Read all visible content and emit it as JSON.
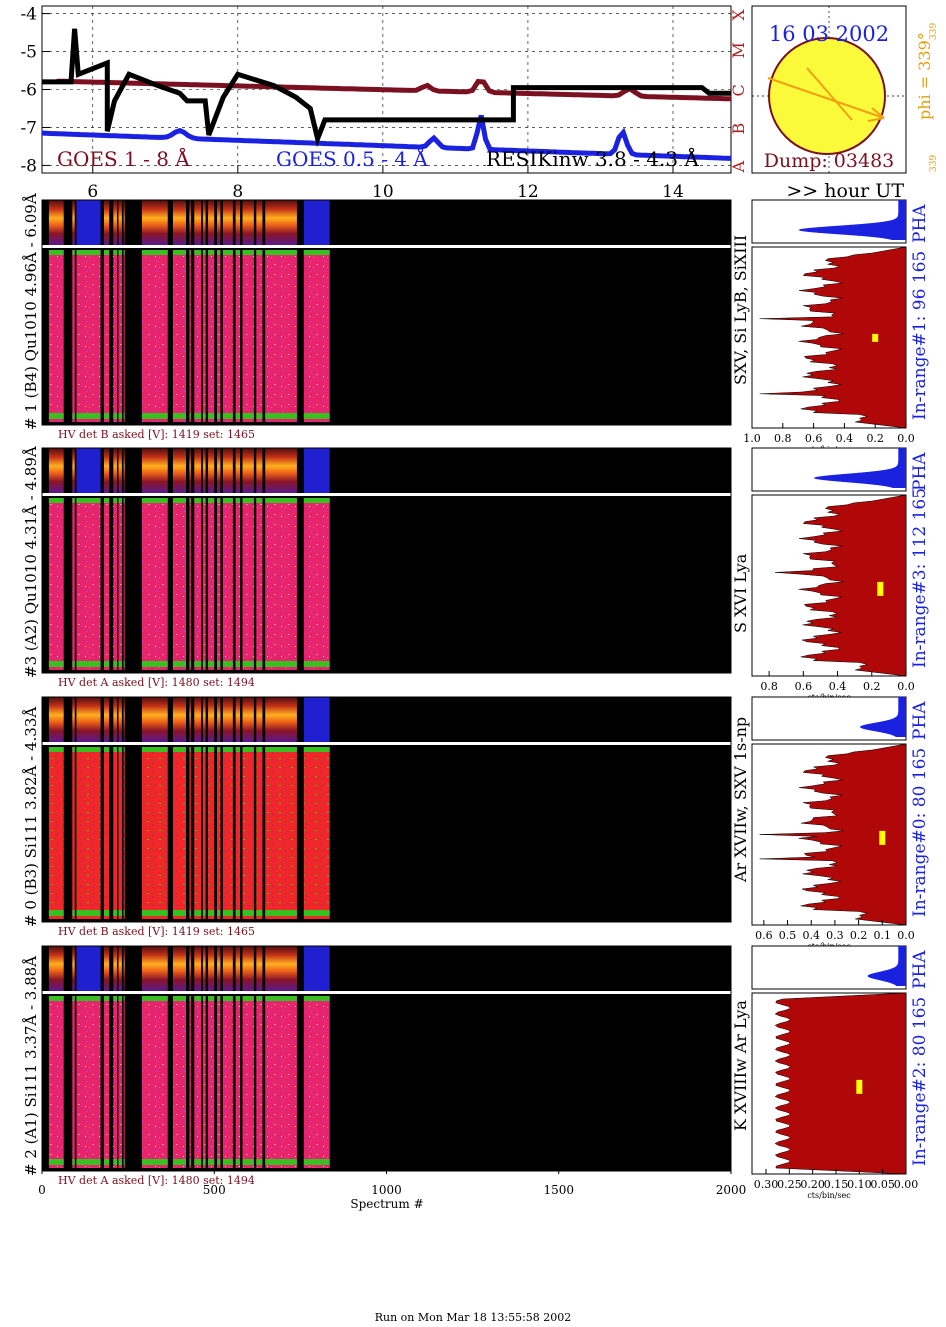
{
  "goes": {
    "y_ticks": [
      "-4",
      "-5",
      "-6",
      "-7",
      "-8"
    ],
    "x_ticks": [
      "6",
      "8",
      "10",
      "12",
      "14"
    ],
    "ylim": [
      -8.2,
      -3.8
    ],
    "xlim": [
      5.3,
      14.8
    ],
    "class_letters": [
      "A",
      "B",
      "C",
      "M",
      "X"
    ],
    "labels": {
      "goes_long": "GOES 1 - 8 Å",
      "goes_short": "GOES 0.5 - 4 Å",
      "resik": "RESIKinw 3.8 - 4.3 Å"
    },
    "colors": {
      "long": "#7b1020",
      "short": "#1a22e0",
      "resik": "#000000"
    }
  },
  "info": {
    "date": "16 03 2002",
    "dump": "Dump: 03483",
    "phi": "phi = 339°",
    "phi_sub": "339",
    "phi_small": "339",
    "hour_label": ">> hour UT"
  },
  "panels": [
    {
      "left_label": "# 1 (B4) Qu1010  4.96Å - 6.09Å",
      "hv": "HV det B asked [V]:  1419  set:  1465",
      "lines": "SXV, Si LyB, SiXIII",
      "inrange": "In-range#1:  96 165",
      "ticks": [
        "1.0",
        "0.8",
        "0.6",
        "0.4",
        "0.2",
        "0.0"
      ],
      "xmax": 1.0,
      "marker": 0.2
    },
    {
      "left_label": "#3 (A2) Qu1010  4.31Å - 4.89Å",
      "hv": "HV det A asked [V]:  1480  set:  1494",
      "lines": "S XVI Lya",
      "inrange": "In-range#3:  112 165",
      "ticks": [
        "0.8",
        "0.6",
        "0.4",
        "0.2",
        "0.0"
      ],
      "xmax": 0.9,
      "marker": 0.15
    },
    {
      "left_label": "# 0 (B3) Si111  3.82Å - 4.33Å",
      "hv": "HV det B asked [V]:  1419  set:  1465",
      "lines": "Ar XVIIw,  SXV 1s-np",
      "inrange": "In-range#0:  80 165",
      "ticks": [
        "0.6",
        "0.5",
        "0.4",
        "0.3",
        "0.2",
        "0.1",
        "0.0"
      ],
      "xmax": 0.65,
      "marker": 0.1
    },
    {
      "left_label": "# 2 (A1) Si111  3.37Å - 3.88Å",
      "hv": "HV det A asked [V]:  1480  set:  1494",
      "lines": "K XVIIIw  Ar Lya",
      "inrange": "In-range#2:   80 165",
      "ticks": [
        "0.30",
        "0.25",
        "0.20",
        "0.15",
        "0.10",
        "0.05",
        "0.00"
      ],
      "xmax": 0.33,
      "marker": 0.1
    }
  ],
  "pha_label": "PHA",
  "cts_label": "cts/bin/sec",
  "spectrum": {
    "ticks": [
      "0",
      "500",
      "1000",
      "1500",
      "2000"
    ],
    "xlabel": "Spectrum #",
    "xlim": [
      0,
      2000
    ]
  },
  "footer": "Run on Mon Mar 18 13:55:58 2002"
}
